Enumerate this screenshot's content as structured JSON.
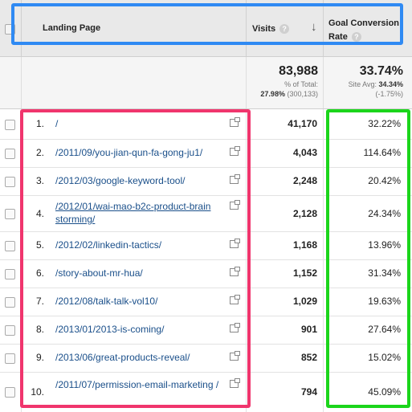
{
  "header": {
    "landing_page": "Landing Page",
    "visits": "Visits",
    "goal_conversion_rate": "Goal Conversion Rate",
    "help": "?",
    "sort_icon": "down-arrow"
  },
  "totals": {
    "visits_total": "83,988",
    "visits_pct_label": "% of Total:",
    "visits_pct_value": "27.98%",
    "visits_pct_of": "(300,133)",
    "goal_total": "33.74%",
    "site_avg_label": "Site Avg:",
    "site_avg_value": "34.34%",
    "site_avg_delta": "(-1.75%)"
  },
  "rows": [
    {
      "index": "1.",
      "page": "/",
      "visits": "41,170",
      "rate": "32.22%"
    },
    {
      "index": "2.",
      "page": "/2011/09/you-jian-qun-fa-gong-ju1/",
      "visits": "4,043",
      "rate": "114.64%"
    },
    {
      "index": "3.",
      "page": "/2012/03/google-keyword-tool/",
      "visits": "2,248",
      "rate": "20.42%"
    },
    {
      "index": "4.",
      "page": "/2012/01/wai-mao-b2c-product-brain storming/",
      "visits": "2,128",
      "rate": "24.34%"
    },
    {
      "index": "5.",
      "page": "/2012/02/linkedin-tactics/",
      "visits": "1,168",
      "rate": "13.96%"
    },
    {
      "index": "6.",
      "page": "/story-about-mr-hua/",
      "visits": "1,152",
      "rate": "31.34%"
    },
    {
      "index": "7.",
      "page": "/2012/08/talk-talk-vol10/",
      "visits": "1,029",
      "rate": "19.63%"
    },
    {
      "index": "8.",
      "page": "/2013/01/2013-is-coming/",
      "visits": "901",
      "rate": "27.64%"
    },
    {
      "index": "9.",
      "page": "/2013/06/great-products-reveal/",
      "visits": "852",
      "rate": "15.02%"
    },
    {
      "index": "10.",
      "page": "/2011/07/permission-email-marketing /",
      "visits": "794",
      "rate": "45.09%"
    }
  ],
  "colors": {
    "highlight_header": "#2f8af3",
    "highlight_pages": "#f0356d",
    "highlight_rates": "#1bd51b",
    "link": "#1a4f8a"
  }
}
